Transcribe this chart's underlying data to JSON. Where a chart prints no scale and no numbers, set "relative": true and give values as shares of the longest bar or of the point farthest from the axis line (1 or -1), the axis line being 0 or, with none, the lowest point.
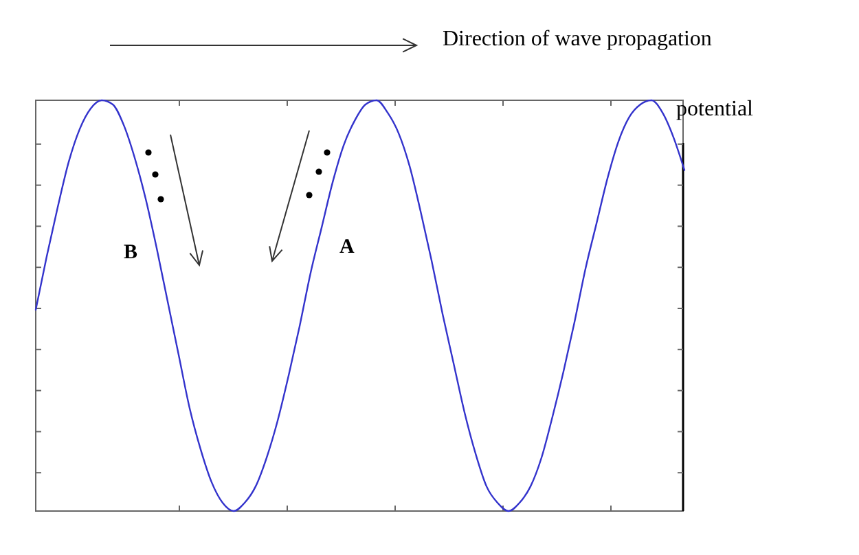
{
  "chart_data": {
    "type": "line",
    "relative": true,
    "ylabel": "potential",
    "annotations": [
      "Direction of wave propagation",
      "B",
      "A"
    ],
    "categories": [
      null,
      null,
      null,
      null,
      null,
      null,
      null,
      null,
      null,
      null,
      null,
      null,
      null,
      null,
      null,
      null,
      null,
      null,
      null,
      null,
      null,
      null,
      null,
      null,
      null,
      null,
      null,
      null,
      null,
      null,
      null,
      null,
      null,
      null,
      null,
      null,
      null,
      null,
      null,
      null,
      null,
      null,
      null,
      null,
      null,
      null,
      null,
      null,
      null,
      null,
      null,
      null,
      null,
      null,
      null,
      null,
      null,
      null,
      null,
      null
    ],
    "series": [
      {
        "color": "#3333cc",
        "values": [
          0.49,
          0.62,
          0.74,
          0.85,
          0.93,
          0.98,
          1.0,
          0.99,
          0.94,
          0.86,
          0.76,
          0.64,
          0.51,
          0.38,
          0.25,
          0.15,
          0.07,
          0.02,
          0,
          0.02,
          0.06,
          0.13,
          0.22,
          0.33,
          0.45,
          0.58,
          0.69,
          0.8,
          0.89,
          0.95,
          0.99,
          1.0,
          0.97,
          0.92,
          0.84,
          0.73,
          0.61,
          0.48,
          0.36,
          0.24,
          0.14,
          0.06,
          0.02,
          0,
          0.02,
          0.06,
          0.13,
          0.23,
          0.34,
          0.46,
          0.59,
          0.7,
          0.81,
          0.9,
          0.96,
          0.99,
          1.0,
          0.97,
          0.91,
          0.83
        ]
      }
    ]
  }
}
